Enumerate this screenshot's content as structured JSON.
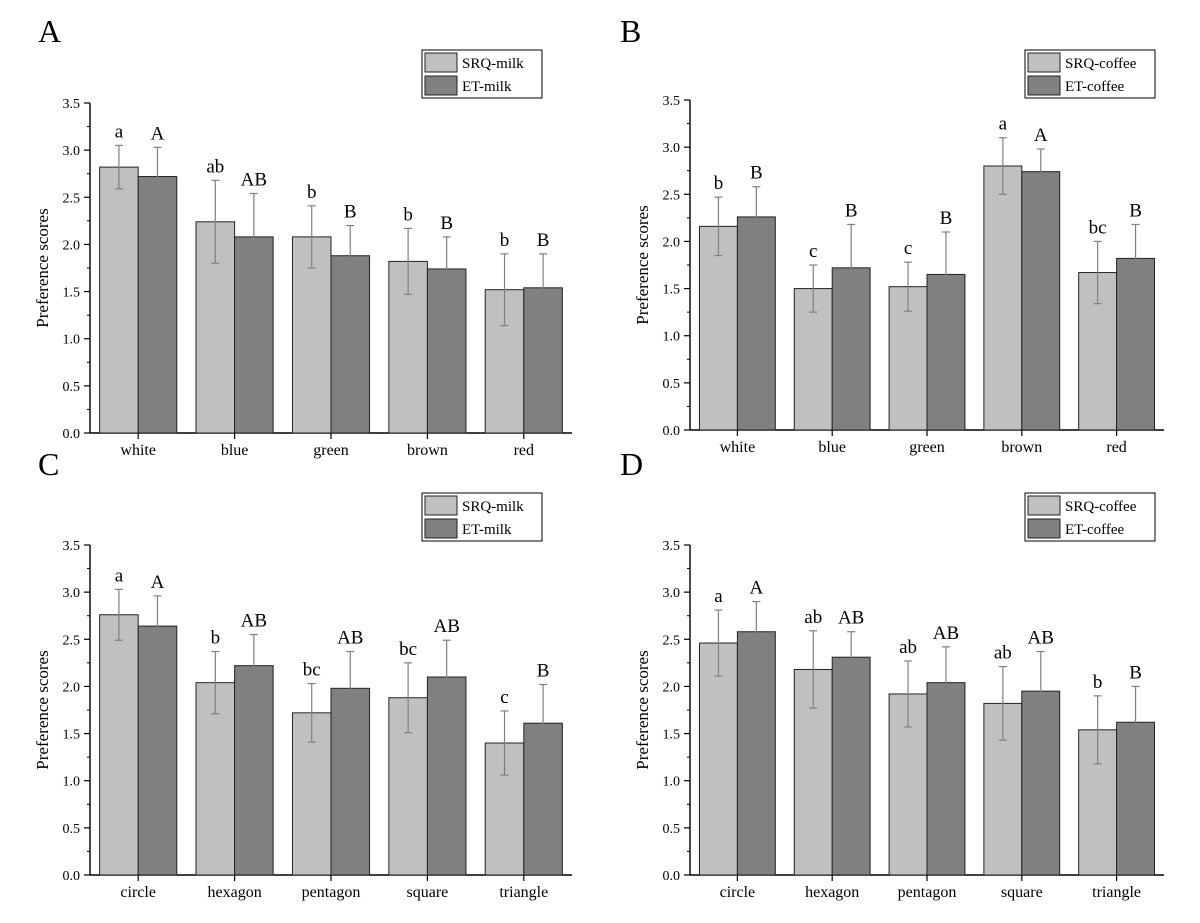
{
  "colors": {
    "srq": "#c0c0c0",
    "et": "#808080",
    "axis": "#000000",
    "errorbar": "#808080"
  },
  "chart_data": [
    {
      "type": "bar",
      "panel": "A",
      "ylabel": "Preference scores",
      "ylim": [
        0,
        3.5
      ],
      "yticks": [
        "0.0",
        "0.5",
        "1.0",
        "1.5",
        "2.0",
        "2.5",
        "3.0",
        "3.5"
      ],
      "categories": [
        "white",
        "blue",
        "green",
        "brown",
        "red"
      ],
      "legend_position": "top-right",
      "series": [
        {
          "name": "SRQ-milk",
          "values": [
            2.82,
            2.24,
            2.08,
            1.82,
            1.52
          ],
          "errors": [
            0.23,
            0.44,
            0.33,
            0.35,
            0.38
          ],
          "letters": [
            "a",
            "ab",
            "b",
            "b",
            "b"
          ]
        },
        {
          "name": "ET-milk",
          "values": [
            2.72,
            2.08,
            1.88,
            1.74,
            1.54
          ],
          "errors": [
            0.31,
            0.46,
            0.32,
            0.34,
            0.36
          ],
          "letters": [
            "A",
            "AB",
            "B",
            "B",
            "B"
          ]
        }
      ]
    },
    {
      "type": "bar",
      "panel": "B",
      "ylabel": "Preference scores",
      "ylim": [
        0,
        3.5
      ],
      "yticks": [
        "0.0",
        "0.5",
        "1.0",
        "1.5",
        "2.0",
        "2.5",
        "3.0",
        "3.5"
      ],
      "categories": [
        "white",
        "blue",
        "green",
        "brown",
        "red"
      ],
      "legend_position": "top-right",
      "series": [
        {
          "name": "SRQ-coffee",
          "values": [
            2.16,
            1.5,
            1.52,
            2.8,
            1.67
          ],
          "errors": [
            0.31,
            0.25,
            0.26,
            0.3,
            0.33
          ],
          "letters": [
            "b",
            "c",
            "c",
            "a",
            "bc"
          ]
        },
        {
          "name": "ET-coffee",
          "values": [
            2.26,
            1.72,
            1.65,
            2.74,
            1.82
          ],
          "errors": [
            0.32,
            0.46,
            0.45,
            0.24,
            0.36
          ],
          "letters": [
            "B",
            "B",
            "B",
            "A",
            "B"
          ]
        }
      ]
    },
    {
      "type": "bar",
      "panel": "C",
      "ylabel": "Preference scores",
      "ylim": [
        0,
        3.5
      ],
      "yticks": [
        "0.0",
        "0.5",
        "1.0",
        "1.5",
        "2.0",
        "2.5",
        "3.0",
        "3.5"
      ],
      "categories": [
        "circle",
        "hexagon",
        "pentagon",
        "square",
        "triangle"
      ],
      "legend_position": "top-right",
      "series": [
        {
          "name": "SRQ-milk",
          "values": [
            2.76,
            2.04,
            1.72,
            1.88,
            1.4
          ],
          "errors": [
            0.27,
            0.33,
            0.31,
            0.37,
            0.34
          ],
          "letters": [
            "a",
            "b",
            "bc",
            "bc",
            "c"
          ]
        },
        {
          "name": "ET-milk",
          "values": [
            2.64,
            2.22,
            1.98,
            2.1,
            1.61
          ],
          "errors": [
            0.32,
            0.33,
            0.39,
            0.39,
            0.41
          ],
          "letters": [
            "A",
            "AB",
            "AB",
            "AB",
            "B"
          ]
        }
      ]
    },
    {
      "type": "bar",
      "panel": "D",
      "ylabel": "Preference scores",
      "ylim": [
        0,
        3.5
      ],
      "yticks": [
        "0.0",
        "0.5",
        "1.0",
        "1.5",
        "2.0",
        "2.5",
        "3.0",
        "3.5"
      ],
      "categories": [
        "circle",
        "hexagon",
        "pentagon",
        "square",
        "triangle"
      ],
      "legend_position": "top-right",
      "series": [
        {
          "name": "SRQ-coffee",
          "values": [
            2.46,
            2.18,
            1.92,
            1.82,
            1.54
          ],
          "errors": [
            0.35,
            0.41,
            0.35,
            0.39,
            0.36
          ],
          "letters": [
            "a",
            "ab",
            "ab",
            "ab",
            "b"
          ]
        },
        {
          "name": "ET-coffee",
          "values": [
            2.58,
            2.31,
            2.04,
            1.95,
            1.62
          ],
          "errors": [
            0.32,
            0.27,
            0.38,
            0.42,
            0.38
          ],
          "letters": [
            "A",
            "AB",
            "AB",
            "AB",
            "B"
          ]
        }
      ]
    }
  ]
}
